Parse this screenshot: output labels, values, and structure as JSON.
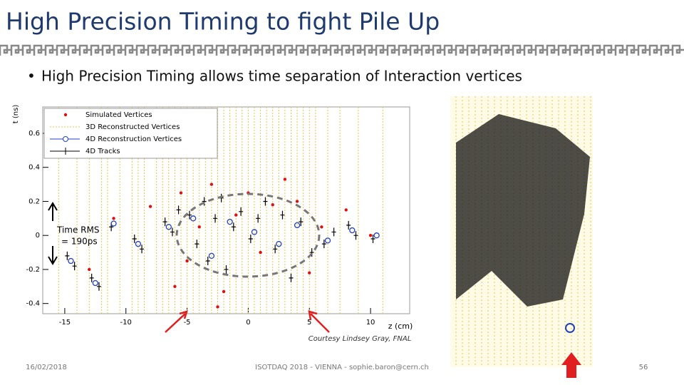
{
  "title": "High Precision Timing to fight Pile Up",
  "bullet": "High Precision Timing allows time separation of Interaction vertices",
  "annotation": {
    "rms_line1": "Time RMS",
    "rms_line2": "= 190ps",
    "credit": "Courtesy Lindsey Gray, FNAL"
  },
  "footer": {
    "date": "16/02/2018",
    "event": "ISOTDAQ 2018 - VIENNA - sophie.baron@cern.ch",
    "page": "56"
  },
  "chart_data": {
    "type": "scatter",
    "x_label": "z (cm)",
    "y_label": "t (ns)",
    "xlim": [
      -16.8,
      13.2
    ],
    "ylim": [
      -0.46,
      0.755
    ],
    "xticks": [
      -15,
      -10,
      -5,
      0,
      5,
      10
    ],
    "yticks": [
      -0.4,
      -0.2,
      0,
      0.2,
      0.4,
      0.6
    ],
    "legend": "upper left",
    "series": [
      {
        "name": "Simulated Vertices",
        "color": "#e01010",
        "x": [
          -13,
          -11,
          -8,
          -5.5,
          -5,
          -4,
          -3,
          -2,
          -1,
          0,
          1,
          2,
          3,
          4,
          5,
          6,
          8,
          10,
          -6,
          -2.5
        ],
        "y": [
          -0.2,
          0.1,
          0.17,
          0.25,
          -0.15,
          0.05,
          0.3,
          -0.33,
          0.12,
          0.25,
          -0.1,
          0.18,
          0.33,
          0.2,
          -0.22,
          0.05,
          0.15,
          0,
          -0.3,
          -0.42
        ]
      },
      {
        "name": "3D Reconstructed Vertices",
        "color": "#e6c84a",
        "x": [
          -15.5,
          -14,
          -13,
          -12,
          -11.5,
          -10.5,
          -9.5,
          -9,
          -8.5,
          -7.5,
          -7,
          -6.5,
          -6,
          -5.5,
          -5,
          -4.5,
          -4,
          -3.5,
          -3,
          -2.5,
          -2,
          -1.5,
          -1,
          -0.5,
          0,
          0.5,
          1,
          1.5,
          2,
          2.5,
          3,
          3.5,
          4,
          4.5,
          5,
          5.5,
          6.5,
          7.5,
          9,
          11
        ]
      },
      {
        "name": "4D Reconstruction Vertices",
        "color": "#2040c0",
        "x": [
          -14.5,
          -12.5,
          -11,
          -9,
          -6.5,
          -4.5,
          -3,
          -1.5,
          0.5,
          2.5,
          4,
          6.5,
          8.5,
          10.5
        ],
        "y": [
          -0.15,
          -0.28,
          0.07,
          -0.05,
          0.05,
          0.1,
          -0.12,
          0.08,
          0.02,
          -0.05,
          0.06,
          -0.03,
          0.03,
          0
        ]
      },
      {
        "name": "4D Tracks",
        "color": "#000000",
        "x": [
          -14.8,
          -14.2,
          -12.8,
          -12.2,
          -11.2,
          -9.3,
          -8.7,
          -6.8,
          -6.2,
          -5.7,
          -4.8,
          -4.2,
          -3.6,
          -3.3,
          -2.7,
          -2.2,
          -1.8,
          -1.2,
          -0.6,
          0.2,
          0.8,
          1.4,
          2.2,
          2.8,
          3.5,
          4.3,
          5.2,
          6.2,
          7,
          8.2,
          8.8,
          10.2
        ],
        "y": [
          -0.12,
          -0.18,
          -0.25,
          -0.3,
          0.05,
          -0.02,
          -0.08,
          0.08,
          0.02,
          0.15,
          0.12,
          -0.05,
          0.2,
          -0.15,
          0.1,
          0.22,
          -0.2,
          0.05,
          0.14,
          -0.02,
          0.1,
          0.2,
          -0.08,
          0.12,
          -0.25,
          0.08,
          -0.1,
          -0.05,
          0.02,
          0.06,
          0,
          -0.02
        ]
      }
    ]
  }
}
